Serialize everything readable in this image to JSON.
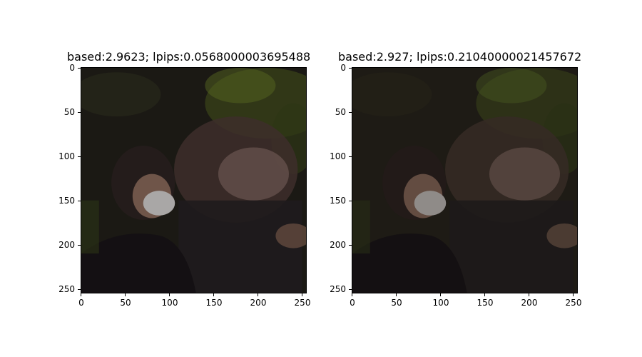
{
  "panels": [
    {
      "title": "based:2.9623; lpips:0.0568000003695488",
      "x_ticks": [
        "0",
        "50",
        "100",
        "150",
        "200",
        "250"
      ],
      "y_ticks": [
        "0",
        "50",
        "100",
        "150",
        "200",
        "250"
      ]
    },
    {
      "title": "based:2.927; lpips:0.21040000021457672",
      "x_ticks": [
        "0",
        "50",
        "100",
        "150",
        "200",
        "250"
      ],
      "y_ticks": [
        "0",
        "50",
        "100",
        "150",
        "200",
        "250"
      ]
    }
  ],
  "image_content": {
    "description": "dim night photo, masked person in black shirt with motion-blurred figure; green foliage at top",
    "colors": {
      "dark": "#1a1712",
      "foliage": "#4a5a22",
      "shirt": "#141013",
      "mask": "#a9a7a6",
      "skin": "#6f5549",
      "blur_face": "#6b5651"
    }
  }
}
